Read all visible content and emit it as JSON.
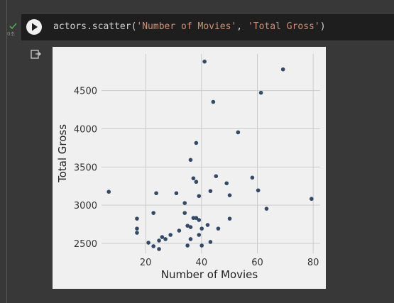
{
  "cell": {
    "code_parts": [
      "actors.scatter(",
      "'Number of Movies'",
      ", ",
      "'Total Gross'",
      ")"
    ],
    "exec_time": "0초"
  },
  "chart_data": {
    "type": "scatter",
    "xlabel": "Number of Movies",
    "ylabel": "Total Gross",
    "x": [
      6.8,
      16.9,
      16.9,
      16.9,
      22.8,
      23.8,
      21,
      22.8,
      24.8,
      24.8,
      25.9,
      27.1,
      28.9,
      31,
      32,
      34,
      34,
      35,
      35,
      36.1,
      36.1,
      36.1,
      37.1,
      37.1,
      38.1,
      38.1,
      38.1,
      39.1,
      39.1,
      39.1,
      40.1,
      40.1,
      41.1,
      42.2,
      43.2,
      43.2,
      44.2,
      45.2,
      46,
      49,
      50.1,
      50.1,
      53.1,
      58.2,
      60.3,
      61.3,
      63.3,
      69.2,
      79.4
    ],
    "values": [
      3176,
      2824,
      2694,
      2639,
      2898,
      3157,
      2509,
      2463,
      2426,
      2537,
      2583,
      2556,
      2611,
      3157,
      2667,
      3028,
      2898,
      2472,
      2731,
      2713,
      2556,
      3593,
      2833,
      3352,
      2833,
      3815,
      3306,
      2611,
      2806,
      3120,
      2472,
      2694,
      4880,
      2741,
      2519,
      3185,
      4352,
      3380,
      2694,
      3287,
      3130,
      2824,
      3954,
      3361,
      3194,
      4472,
      2954,
      4778,
      3083
    ],
    "color": "#344964",
    "xlim": [
      4.2,
      82.5
    ],
    "ylim": [
      2370,
      4980
    ],
    "xticks": [
      20,
      40,
      60,
      80
    ],
    "yticks": [
      2500,
      3000,
      3500,
      4000,
      4500
    ],
    "grid": true
  }
}
